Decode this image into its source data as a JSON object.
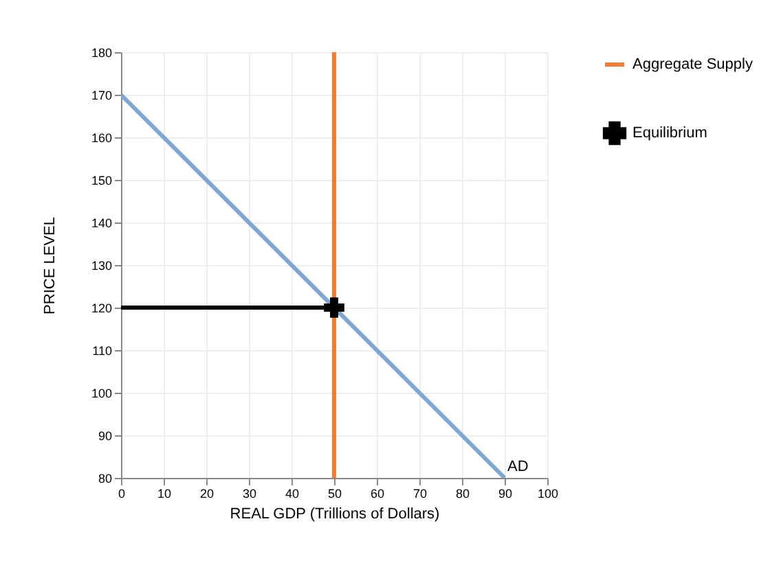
{
  "chart_data": {
    "type": "line",
    "xlabel": "REAL GDP (Trillions of Dollars)",
    "ylabel": "PRICE LEVEL",
    "xlim": [
      0,
      100
    ],
    "xticks": [
      0,
      10,
      20,
      30,
      40,
      50,
      60,
      70,
      80,
      90,
      100
    ],
    "ylim": [
      80,
      180
    ],
    "yticks": [
      80,
      90,
      100,
      110,
      120,
      130,
      140,
      150,
      160,
      170,
      180
    ],
    "grid": true,
    "legend": "top right",
    "series": [
      {
        "color": "#7ea6d3",
        "x": [
          0,
          90
        ],
        "values": [
          170,
          80
        ]
      },
      {
        "color": "#000000",
        "x": [
          0,
          50
        ],
        "values": [
          120,
          120
        ]
      },
      {
        "name": "Aggregate Supply",
        "color": "#f47c30",
        "x": [
          50,
          50
        ],
        "values": [
          80,
          180
        ]
      },
      {
        "name": "Equilibrium",
        "type": "scatter",
        "marker": "cross",
        "color": "#000000",
        "x": [
          50
        ],
        "values": [
          120
        ]
      }
    ],
    "annotations": [
      {
        "text": "AD",
        "x": 90,
        "y": 80
      }
    ]
  }
}
